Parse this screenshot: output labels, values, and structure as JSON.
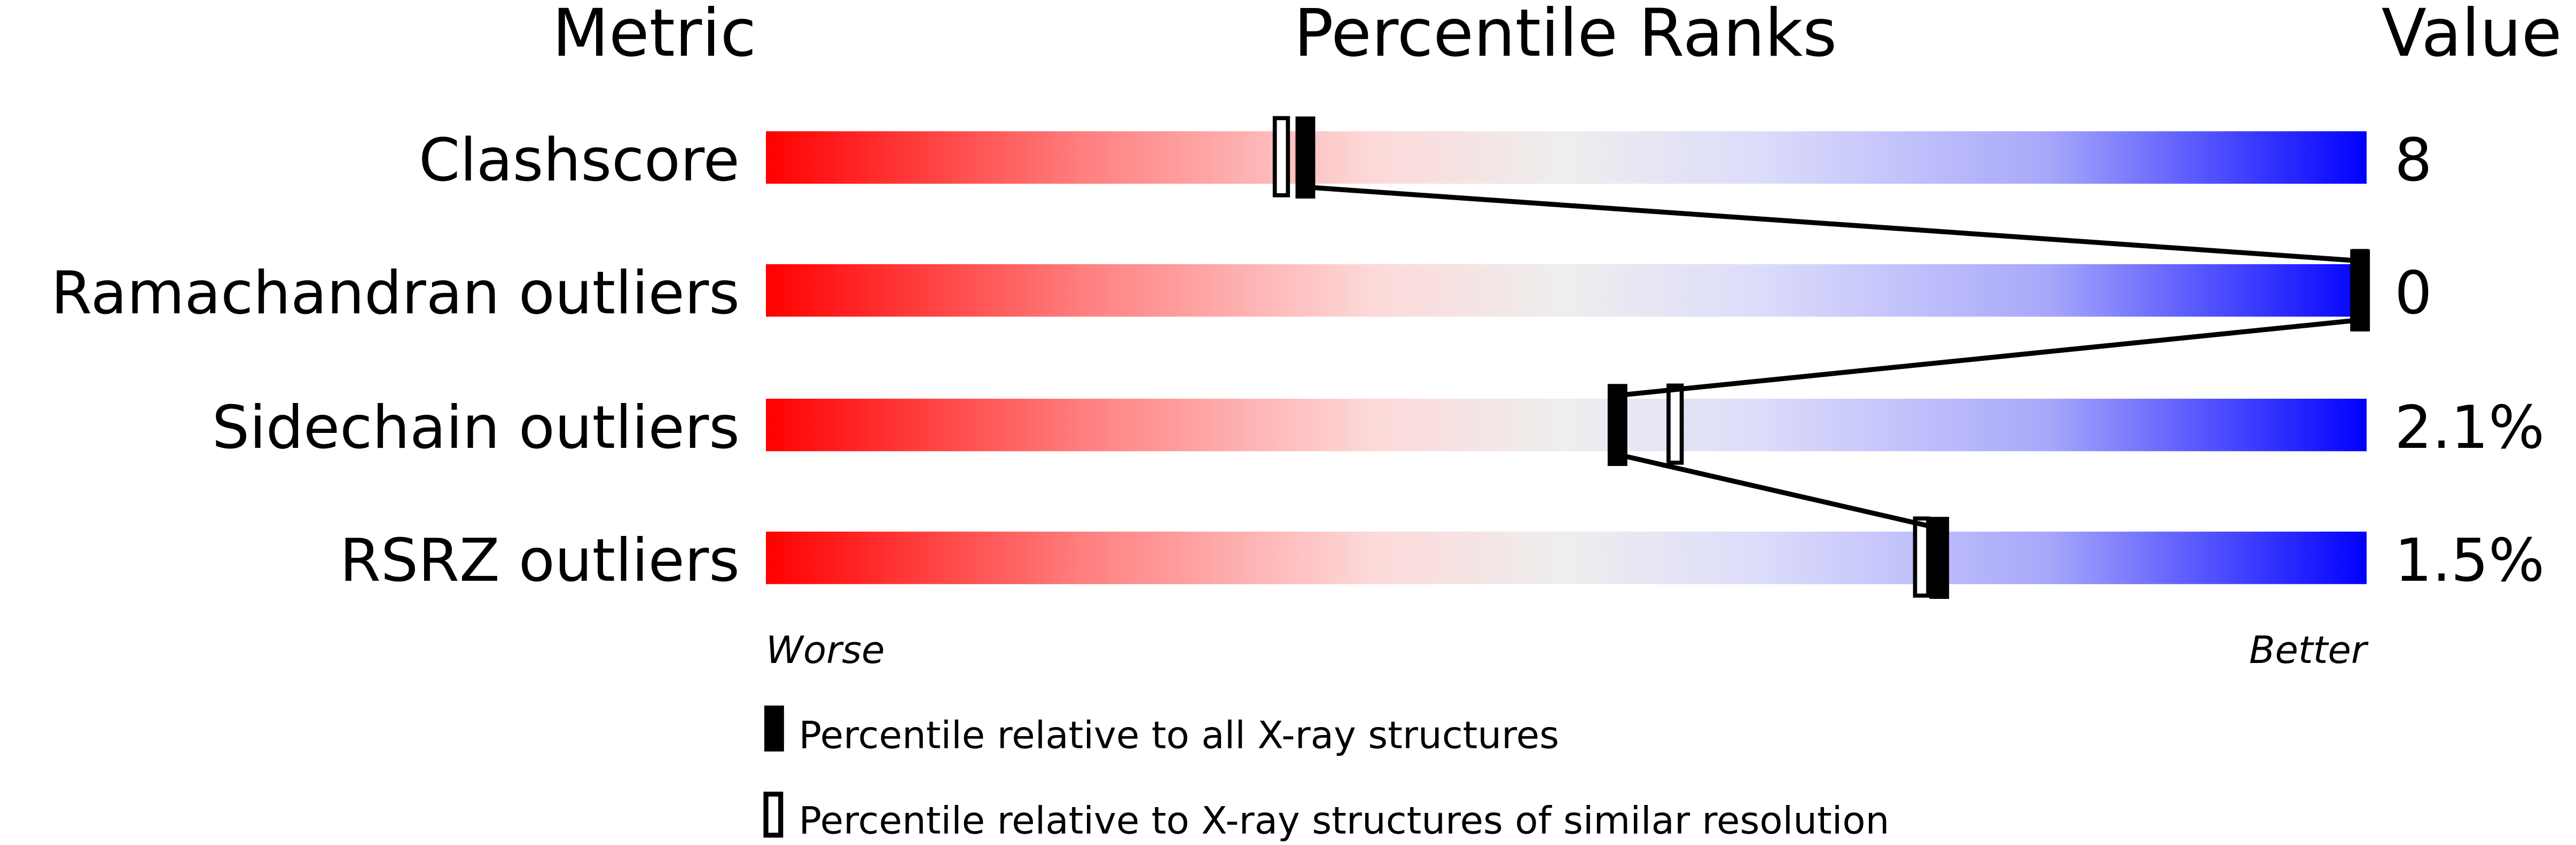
{
  "chart_data": {
    "type": "bar",
    "headers": {
      "metric": "Metric",
      "ranks": "Percentile Ranks",
      "value": "Value"
    },
    "metrics": [
      {
        "name": "Clashscore",
        "value": "8",
        "percentile_all": 33.7,
        "percentile_similar": 32.2
      },
      {
        "name": "Ramachandran outliers",
        "value": "0",
        "percentile_all": 100,
        "percentile_similar": 100
      },
      {
        "name": "Sidechain outliers",
        "value": "2.1%",
        "percentile_all": 53.2,
        "percentile_similar": 56.8
      },
      {
        "name": "RSRZ outliers",
        "value": "1.5%",
        "percentile_all": 73.3,
        "percentile_similar": 72.2
      }
    ],
    "axis": {
      "left": "Worse",
      "right": "Better",
      "range": [
        0,
        100
      ]
    },
    "legend": [
      {
        "marker": "filled",
        "label": "Percentile relative to all X-ray structures"
      },
      {
        "marker": "open",
        "label": "Percentile relative to X-ray structures of similar resolution"
      }
    ],
    "colors": {
      "worse": "#ff0000",
      "middle": "#eeeeee",
      "better": "#0000ff"
    }
  }
}
